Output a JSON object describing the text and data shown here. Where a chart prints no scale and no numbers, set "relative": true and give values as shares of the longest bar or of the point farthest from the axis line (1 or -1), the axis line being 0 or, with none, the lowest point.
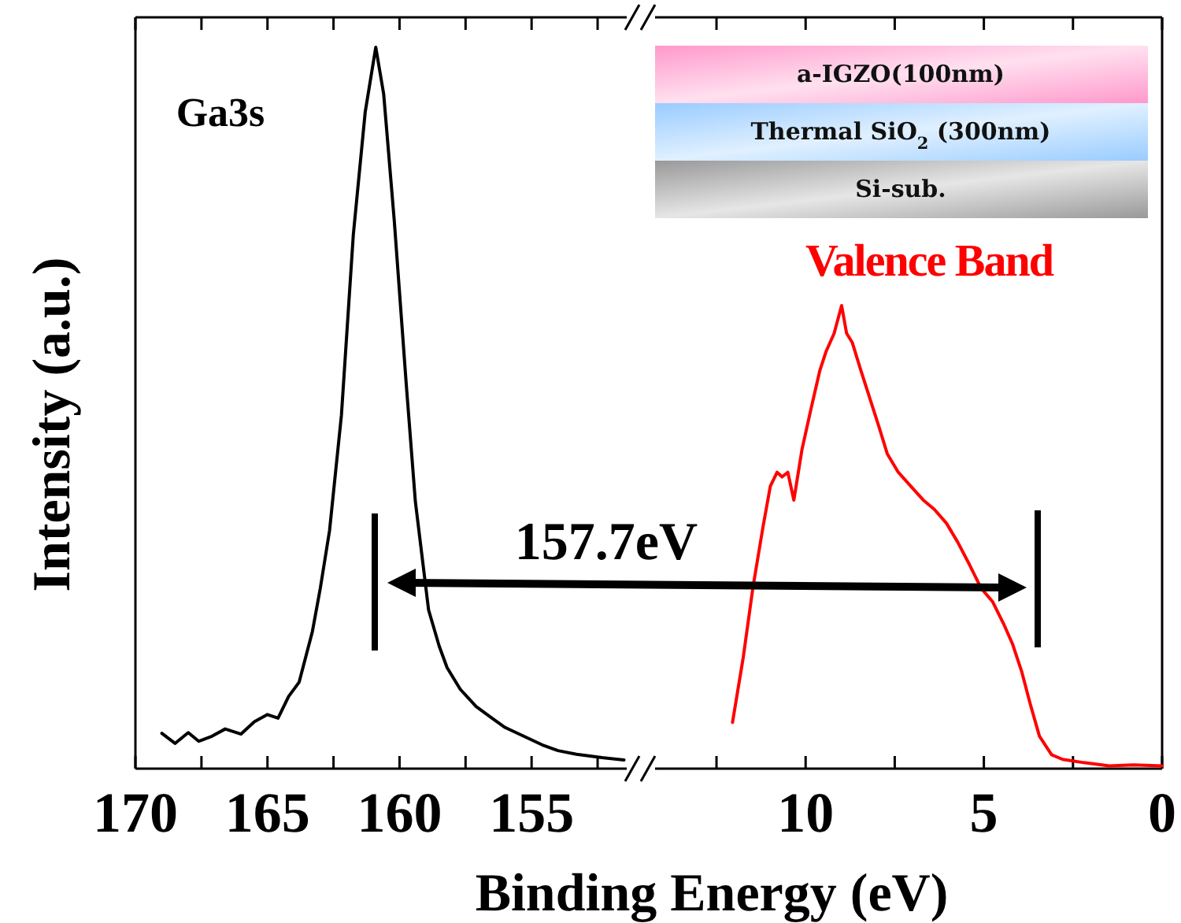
{
  "chart_data": [
    {
      "type": "line",
      "relative": true,
      "xlabel": "Binding Energy (eV)",
      "ylabel": "Intensity (a.u.)",
      "tick_labels": "x",
      "grid": false,
      "marker": "none",
      "line_style": "solid",
      "xlim": [
        170,
        151.1
      ],
      "xticks": [
        170,
        {
          "value": 167.5,
          "label": null
        },
        165,
        {
          "value": 162.5,
          "label": null
        },
        160,
        {
          "value": 157.5,
          "label": null
        },
        155,
        {
          "value": 152.5,
          "label": null
        }
      ],
      "annotations": [
        "Ga3s",
        "157.7eV"
      ],
      "series": [
        {
          "color": "#000000",
          "x": [
            169.0,
            168.5,
            168.0,
            167.6,
            167.1,
            166.6,
            166.0,
            165.5,
            165.0,
            164.6,
            164.2,
            163.8,
            163.3,
            163.0,
            162.65,
            162.2,
            161.75,
            161.3,
            160.9,
            160.6,
            160.2,
            159.75,
            159.4,
            158.9,
            158.5,
            158.2,
            157.7,
            157.1,
            156.5,
            156.0,
            155.3,
            154.6,
            154.0,
            153.3,
            152.5,
            151.5
          ],
          "values": [
            0.049,
            0.035,
            0.05,
            0.038,
            0.045,
            0.055,
            0.048,
            0.065,
            0.075,
            0.07,
            0.1,
            0.12,
            0.19,
            0.25,
            0.33,
            0.49,
            0.74,
            0.91,
            1.0,
            0.935,
            0.76,
            0.535,
            0.37,
            0.22,
            0.17,
            0.14,
            0.11,
            0.086,
            0.07,
            0.057,
            0.045,
            0.033,
            0.025,
            0.02,
            0.016,
            0.012
          ]
        }
      ]
    },
    {
      "type": "line",
      "relative": true,
      "tick_labels": "x",
      "grid": false,
      "marker": "none",
      "line_style": "solid",
      "xlim": [
        14.4,
        0
      ],
      "xticks": [
        {
          "value": 12.5,
          "label": null
        },
        10,
        {
          "value": 7.5,
          "label": null
        },
        5,
        {
          "value": 2.5,
          "label": null
        },
        0
      ],
      "annotations": [
        "Valence Band",
        "a-IGZO(100nm)",
        "Thermal SiO$_{2}$ (300nm)",
        "Si-sub."
      ],
      "series": [
        {
          "color": "#ff0000",
          "x": [
            12.05,
            11.75,
            11.48,
            11.2,
            10.99,
            10.8,
            10.66,
            10.5,
            10.33,
            10.1,
            9.84,
            9.6,
            9.43,
            9.2,
            8.99,
            8.85,
            8.69,
            8.45,
            8.2,
            7.95,
            7.71,
            7.4,
            7.05,
            6.7,
            6.39,
            6.05,
            5.74,
            5.4,
            5.08,
            4.75,
            4.43,
            4.2,
            3.94,
            3.7,
            3.44,
            3.1,
            2.79,
            2.2,
            1.48,
            0.8,
            0
          ],
          "values": [
            0.1,
            0.24,
            0.39,
            0.52,
            0.61,
            0.64,
            0.63,
            0.64,
            0.58,
            0.69,
            0.78,
            0.86,
            0.9,
            0.94,
            1.0,
            0.94,
            0.92,
            0.86,
            0.8,
            0.74,
            0.68,
            0.64,
            0.61,
            0.58,
            0.56,
            0.53,
            0.49,
            0.44,
            0.39,
            0.36,
            0.31,
            0.27,
            0.21,
            0.14,
            0.07,
            0.03,
            0.02,
            0.013,
            0.006,
            0.008,
            0.006
          ]
        }
      ]
    }
  ]
}
